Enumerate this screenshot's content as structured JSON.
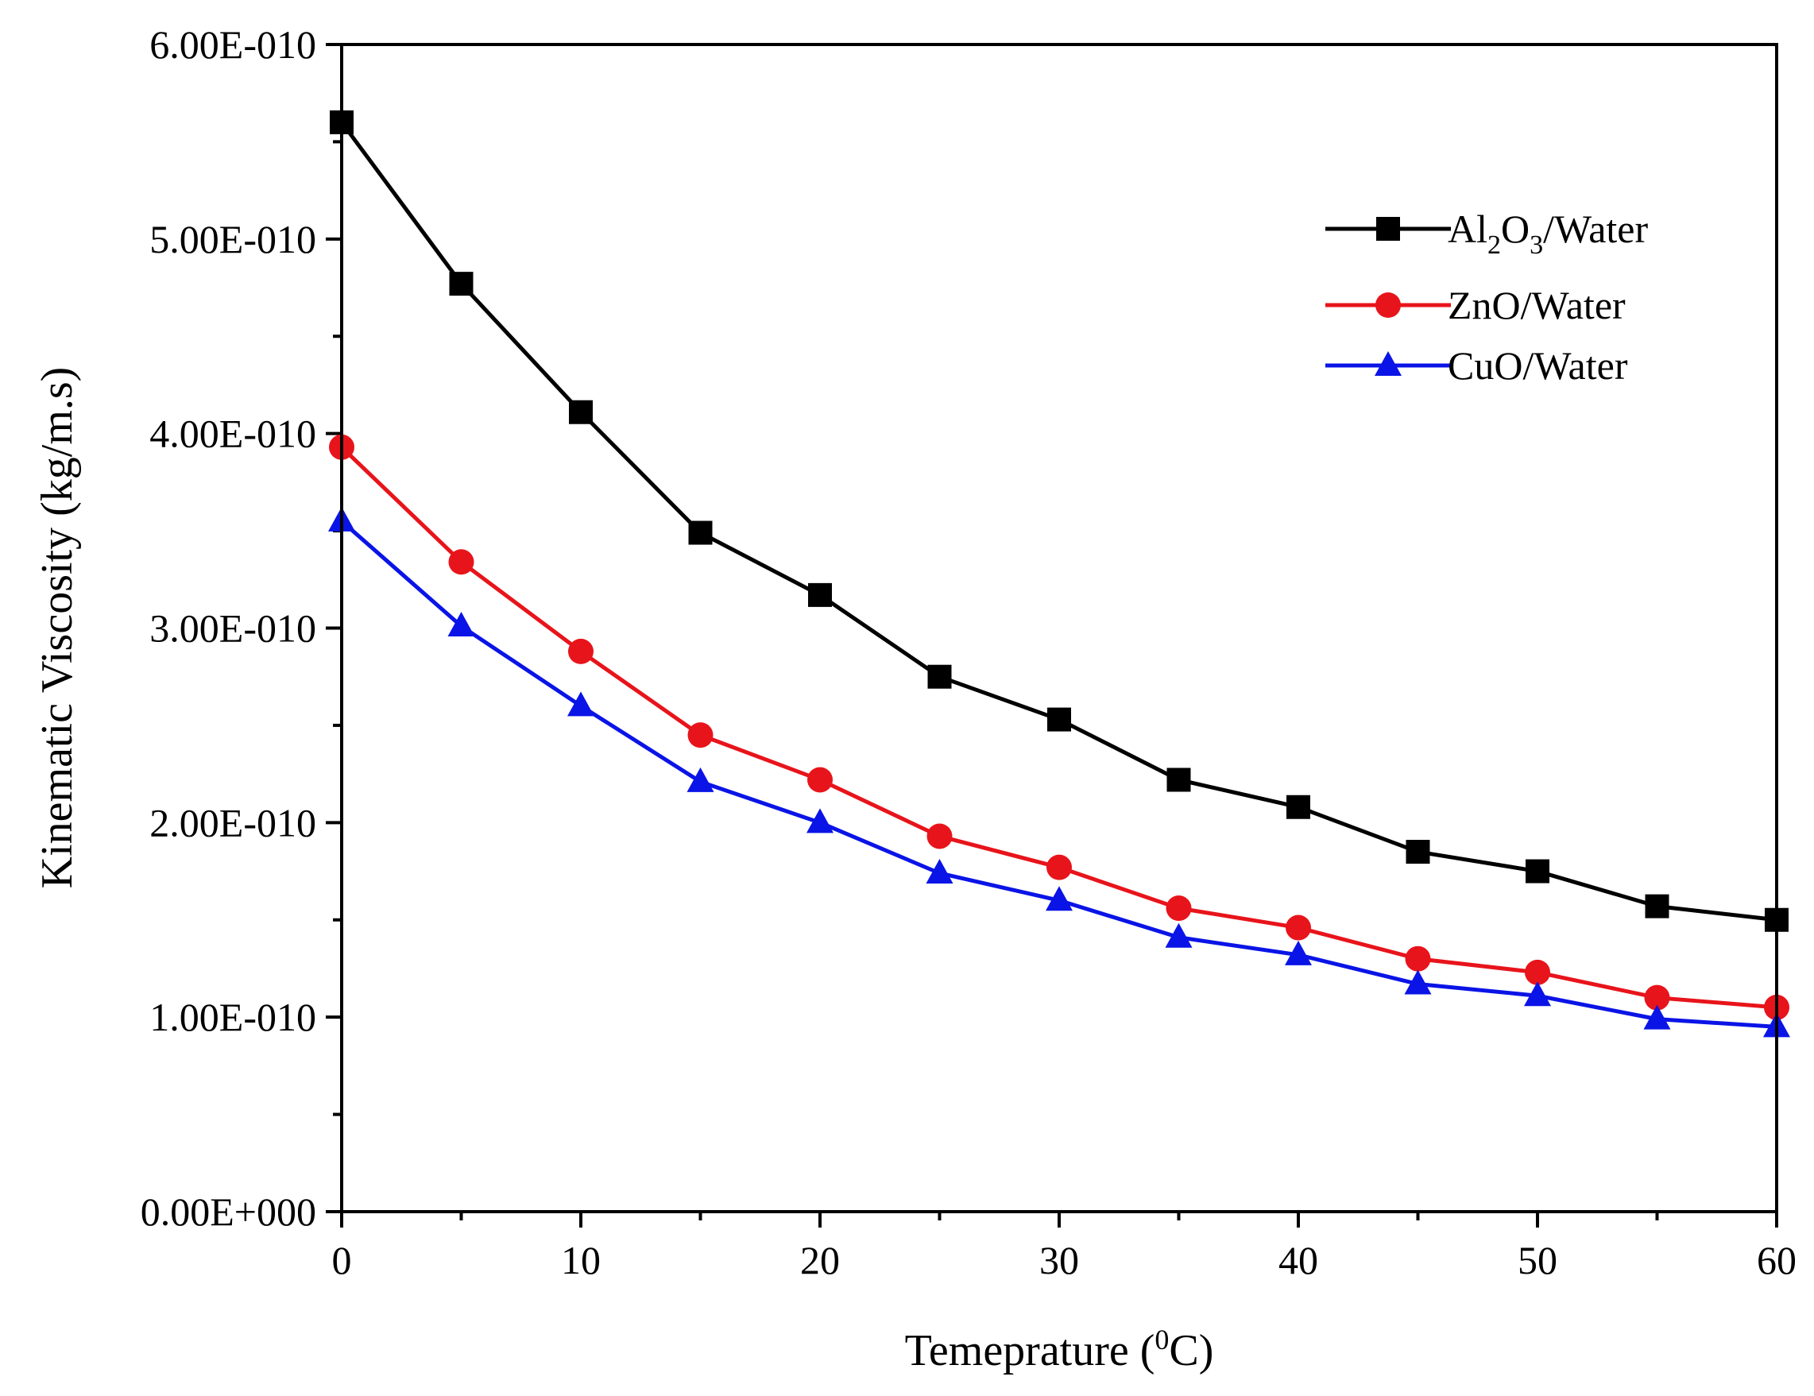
{
  "chart_data": {
    "type": "line",
    "title": "",
    "xlabel": "Temeprature (0C)",
    "xlabel_parts": {
      "before": "Temeprature (",
      "sup": "0",
      "after": "C)"
    },
    "ylabel": "Kinematic Viscosity (kg/m.s)",
    "xlim": [
      0,
      60
    ],
    "ylim": [
      0,
      6e-10
    ],
    "x_ticks": [
      0,
      10,
      20,
      30,
      40,
      50,
      60
    ],
    "x_tick_labels": [
      "0",
      "10",
      "20",
      "30",
      "40",
      "50",
      "60"
    ],
    "y_ticks": [
      0,
      1e-10,
      2e-10,
      3e-10,
      4e-10,
      5e-10,
      6e-10
    ],
    "y_tick_labels": [
      "0.00E+000",
      "1.00E-010",
      "2.00E-010",
      "3.00E-010",
      "4.00E-010",
      "5.00E-010",
      "6.00E-010"
    ],
    "grid": false,
    "legend_position": "top-right",
    "x": [
      0,
      5,
      10,
      15,
      20,
      25,
      30,
      35,
      40,
      45,
      50,
      55,
      60
    ],
    "series": [
      {
        "name": "Al2O3/Water",
        "label_parts": [
          "Al",
          "2",
          "O",
          "3",
          "/Water"
        ],
        "color": "#000000",
        "marker": "square",
        "values": [
          5.6e-10,
          4.77e-10,
          4.11e-10,
          3.49e-10,
          3.17e-10,
          2.75e-10,
          2.53e-10,
          2.22e-10,
          2.08e-10,
          1.85e-10,
          1.75e-10,
          1.57e-10,
          1.5e-10
        ]
      },
      {
        "name": "ZnO/Water",
        "label_parts": [
          "ZnO/Water"
        ],
        "color": "#e8141b",
        "marker": "circle",
        "values": [
          3.93e-10,
          3.34e-10,
          2.88e-10,
          2.45e-10,
          2.22e-10,
          1.93e-10,
          1.77e-10,
          1.56e-10,
          1.46e-10,
          1.3e-10,
          1.23e-10,
          1.1e-10,
          1.05e-10
        ]
      },
      {
        "name": "CuO/Water",
        "label_parts": [
          "CuO/Water"
        ],
        "color": "#0a14e6",
        "marker": "triangle",
        "values": [
          3.55e-10,
          3.01e-10,
          2.6e-10,
          2.21e-10,
          2e-10,
          1.74e-10,
          1.6e-10,
          1.41e-10,
          1.32e-10,
          1.17e-10,
          1.11e-10,
          9.9e-11,
          9.5e-11
        ]
      }
    ]
  }
}
